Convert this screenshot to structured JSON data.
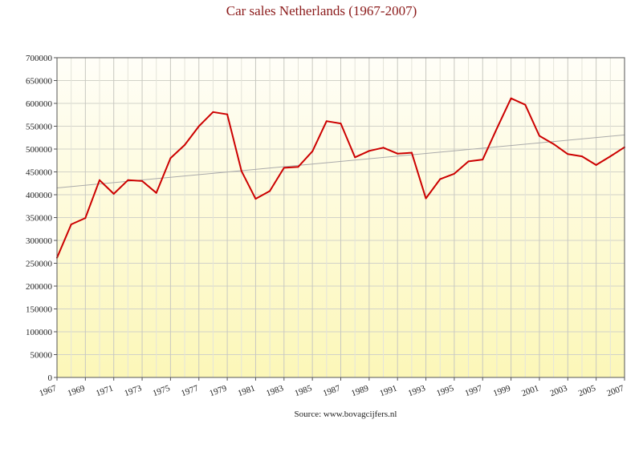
{
  "chart_data": {
    "type": "line",
    "title": "Car sales Netherlands (1967-2007)",
    "source": "Source: www.bovagcijfers.nl",
    "xlabel": "",
    "ylabel": "",
    "xlim": [
      1967,
      2007
    ],
    "ylim": [
      0,
      700000
    ],
    "x_ticks": [
      "1967",
      "1969",
      "1971",
      "1973",
      "1975",
      "1977",
      "1979",
      "1981",
      "1983",
      "1985",
      "1987",
      "1989",
      "1991",
      "1993",
      "1995",
      "1997",
      "1999",
      "2001",
      "2003",
      "2005",
      "2007"
    ],
    "y_ticks": [
      "0",
      "50000",
      "100000",
      "150000",
      "200000",
      "250000",
      "300000",
      "350000",
      "400000",
      "450000",
      "500000",
      "550000",
      "600000",
      "650000",
      "700000"
    ],
    "grid": true,
    "series": [
      {
        "color": "#cc0000",
        "x": [
          1967,
          1968,
          1969,
          1970,
          1971,
          1972,
          1973,
          1974,
          1975,
          1976,
          1977,
          1978,
          1979,
          1980,
          1981,
          1982,
          1983,
          1984,
          1985,
          1986,
          1987,
          1988,
          1989,
          1990,
          1991,
          1992,
          1993,
          1994,
          1995,
          1996,
          1997,
          1998,
          1999,
          2000,
          2001,
          2002,
          2003,
          2004,
          2005,
          2006,
          2007
        ],
        "values": [
          262000,
          335000,
          349000,
          432000,
          402000,
          432000,
          430000,
          404000,
          480000,
          509000,
          550000,
          581000,
          576000,
          452000,
          391000,
          408000,
          459000,
          461000,
          495000,
          561000,
          556000,
          482000,
          496000,
          503000,
          490000,
          492000,
          392000,
          434000,
          446000,
          473000,
          477000,
          545000,
          611000,
          597000,
          529000,
          511000,
          489000,
          484000,
          465000,
          484000,
          504000
        ]
      }
    ],
    "trendline": {
      "color": "#aaaaaa",
      "start": [
        1967,
        415000
      ],
      "end": [
        2007,
        531000
      ]
    }
  }
}
